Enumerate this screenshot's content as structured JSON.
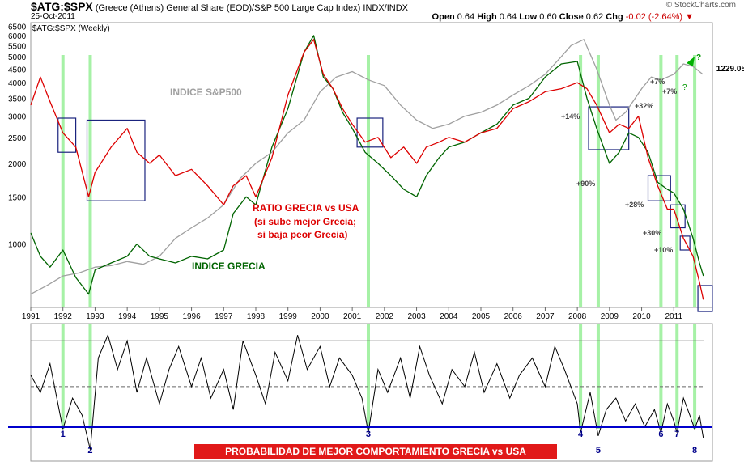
{
  "header": {
    "symbol": "$ATG:$SPX",
    "description": "(Greece (Athens) General Share (EOD)/S&P 500 Large Cap Index) INDX/INDX",
    "date": "25-Oct-2011",
    "brand": "© StockCharts.com",
    "open_label": "Open",
    "open": "0.64",
    "high_label": "High",
    "high": "0.64",
    "low_label": "Low",
    "low": "0.60",
    "close_label": "Close",
    "close": "0.62",
    "chg_label": "Chg",
    "chg": "-0.02 (-2.64%)"
  },
  "colors": {
    "ratio": "#dd0000",
    "greece": "#006400",
    "sp500": "#a0a0a0",
    "highlight": "#90ee90",
    "box": "#1a237e",
    "indicator_line": "#0000cc",
    "caption_bg": "#e11919"
  },
  "chart_data": [
    {
      "type": "line",
      "panel": "upper",
      "legend": "$ATG:$SPX (Weekly)",
      "scale": "log",
      "y_ticks": [
        "6500",
        "6000",
        "5500",
        "5000",
        "4500",
        "4000",
        "3500",
        "3000",
        "2500",
        "2000",
        "1500",
        "1000"
      ],
      "y_tick_values": [
        6500,
        6000,
        5500,
        5000,
        4500,
        4000,
        3500,
        3000,
        2500,
        2000,
        1500,
        1000
      ],
      "ylim": [
        580,
        6700
      ],
      "xlim": [
        1991.0,
        2011.95
      ],
      "x_ticks": [
        "1991",
        "1992",
        "1993",
        "1994",
        "1995",
        "1996",
        "1997",
        "1998",
        "1999",
        "2000",
        "2001",
        "2002",
        "2003",
        "2004",
        "2005",
        "2006",
        "2007",
        "2008",
        "2009",
        "2010",
        "2011"
      ],
      "last_value_label": "1229.05",
      "series": [
        {
          "name": "RATIO GRECIA vs USA",
          "x": [
            1991.0,
            1991.3,
            1991.6,
            1992.0,
            1992.4,
            1992.8,
            1993.0,
            1993.5,
            1994.0,
            1994.3,
            1994.7,
            1995.0,
            1995.5,
            1996.0,
            1996.5,
            1997.0,
            1997.3,
            1997.7,
            1998.0,
            1998.5,
            1999.0,
            1999.5,
            1999.8,
            2000.1,
            2000.4,
            2000.7,
            2001.0,
            2001.4,
            2001.8,
            2002.2,
            2002.6,
            2003.0,
            2003.3,
            2003.7,
            2004.0,
            2004.5,
            2005.0,
            2005.5,
            2006.0,
            2006.5,
            2007.0,
            2007.5,
            2008.0,
            2008.3,
            2008.6,
            2009.0,
            2009.3,
            2009.6,
            2009.9,
            2010.2,
            2010.5,
            2010.8,
            2011.0,
            2011.3,
            2011.6,
            2011.8,
            2011.92
          ],
          "values": [
            3300,
            4200,
            3400,
            2600,
            2300,
            1500,
            1850,
            2300,
            2700,
            2200,
            2000,
            2150,
            1800,
            1900,
            1650,
            1400,
            1650,
            1800,
            1500,
            2100,
            3600,
            5200,
            5800,
            4300,
            3800,
            3200,
            2800,
            2400,
            2500,
            2100,
            2300,
            2000,
            2300,
            2400,
            2500,
            2400,
            2600,
            2700,
            3200,
            3400,
            3700,
            3800,
            4000,
            3800,
            3300,
            2600,
            2800,
            2700,
            3000,
            2100,
            1650,
            1350,
            1350,
            1050,
            900,
            720,
            620
          ]
        },
        {
          "name": "INDICE GRECIA",
          "x": [
            1991.0,
            1991.3,
            1991.6,
            1992.0,
            1992.4,
            1992.8,
            1993.0,
            1993.5,
            1994.0,
            1994.3,
            1994.7,
            1995.0,
            1995.5,
            1996.0,
            1996.5,
            1997.0,
            1997.3,
            1997.7,
            1998.0,
            1998.5,
            1999.0,
            1999.5,
            1999.8,
            2000.1,
            2000.4,
            2000.7,
            2001.0,
            2001.4,
            2001.8,
            2002.2,
            2002.6,
            2003.0,
            2003.3,
            2003.7,
            2004.0,
            2004.5,
            2005.0,
            2005.5,
            2006.0,
            2006.5,
            2007.0,
            2007.5,
            2008.0,
            2008.3,
            2008.6,
            2009.0,
            2009.3,
            2009.6,
            2009.9,
            2010.2,
            2010.5,
            2010.8,
            2011.0,
            2011.3,
            2011.6,
            2011.8,
            2011.92
          ],
          "values": [
            1100,
            900,
            820,
            950,
            750,
            650,
            800,
            850,
            900,
            1000,
            900,
            880,
            850,
            900,
            880,
            950,
            1300,
            1500,
            1400,
            2300,
            3200,
            5200,
            6000,
            4200,
            3800,
            3100,
            2700,
            2200,
            2000,
            1800,
            1600,
            1500,
            1800,
            2100,
            2300,
            2400,
            2600,
            2800,
            3300,
            3500,
            4200,
            4700,
            4800,
            3500,
            2700,
            2000,
            2200,
            2600,
            2500,
            2200,
            1700,
            1600,
            1550,
            1350,
            1050,
            850,
            760
          ]
        },
        {
          "name": "INDICE S&P500",
          "x": [
            1991.0,
            1991.5,
            1992.0,
            1992.5,
            1993.0,
            1993.5,
            1994.0,
            1994.5,
            1995.0,
            1995.5,
            1996.0,
            1996.5,
            1997.0,
            1997.5,
            1998.0,
            1998.5,
            1999.0,
            1999.5,
            2000.0,
            2000.5,
            2001.0,
            2001.5,
            2002.0,
            2002.5,
            2003.0,
            2003.5,
            2004.0,
            2004.5,
            2005.0,
            2005.5,
            2006.0,
            2006.5,
            2007.0,
            2007.5,
            2007.8,
            2008.2,
            2008.6,
            2009.0,
            2009.2,
            2009.5,
            2010.0,
            2010.3,
            2010.6,
            2011.0,
            2011.3,
            2011.6,
            2011.9
          ],
          "values": [
            650,
            700,
            760,
            780,
            820,
            830,
            860,
            840,
            900,
            1050,
            1150,
            1250,
            1400,
            1750,
            2000,
            2200,
            2600,
            2900,
            3700,
            4200,
            4400,
            4100,
            3900,
            3300,
            2900,
            2700,
            2800,
            3000,
            3100,
            3300,
            3600,
            3900,
            4300,
            5000,
            5500,
            5800,
            4500,
            3300,
            2900,
            3100,
            3800,
            4200,
            4100,
            4300,
            4700,
            4600,
            4300
          ]
        }
      ],
      "annotations": [
        {
          "text": "INDICE S&P500",
          "color": "#a0a0a0"
        },
        {
          "text": "RATIO GRECIA vs USA",
          "color": "#dd0000"
        },
        {
          "text": "(si sube mejor Grecia;",
          "color": "#dd0000"
        },
        {
          "text": "si baja peor Grecia)",
          "color": "#dd0000"
        },
        {
          "text": "INDICE GRECIA",
          "color": "#006400"
        },
        {
          "text": "+14%"
        },
        {
          "text": "+32%"
        },
        {
          "text": "+7%"
        },
        {
          "text": "+7%"
        },
        {
          "text": "+90%"
        },
        {
          "text": "+28%"
        },
        {
          "text": "+30%"
        },
        {
          "text": "+10%"
        },
        {
          "text": "?"
        },
        {
          "text": "?"
        }
      ],
      "highlight_x": [
        1992.0,
        1992.85,
        2001.5,
        2008.1,
        2008.65,
        2010.6,
        2011.1,
        2011.65
      ],
      "boxes": [
        {
          "x0": 1991.85,
          "x1": 1992.4,
          "y0": 2200,
          "y1": 2950
        },
        {
          "x0": 1992.75,
          "x1": 1994.55,
          "y0": 1450,
          "y1": 2900
        },
        {
          "x0": 2001.15,
          "x1": 2001.95,
          "y0": 2300,
          "y1": 2950
        },
        {
          "x0": 2008.35,
          "x1": 2009.6,
          "y0": 2250,
          "y1": 3250
        },
        {
          "x0": 2010.2,
          "x1": 2010.9,
          "y0": 1450,
          "y1": 1800
        },
        {
          "x0": 2010.9,
          "x1": 2011.35,
          "y0": 1150,
          "y1": 1400
        },
        {
          "x0": 2011.2,
          "x1": 2011.5,
          "y0": 950,
          "y1": 1070
        },
        {
          "x0": 2011.75,
          "x1": 2012.2,
          "y0": 560,
          "y1": 700
        }
      ]
    },
    {
      "type": "line",
      "panel": "lower",
      "series": [
        {
          "x": [
            1991.0,
            1991.3,
            1991.6,
            1992.0,
            1992.3,
            1992.6,
            1992.85,
            1993.1,
            1993.4,
            1993.7,
            1994.0,
            1994.3,
            1994.6,
            1995.0,
            1995.3,
            1995.6,
            1996.0,
            1996.3,
            1996.6,
            1997.0,
            1997.3,
            1997.6,
            1998.0,
            1998.3,
            1998.6,
            1999.0,
            1999.3,
            1999.6,
            2000.0,
            2000.3,
            2000.6,
            2001.0,
            2001.3,
            2001.5,
            2001.8,
            2002.1,
            2002.5,
            2002.8,
            2003.1,
            2003.4,
            2003.8,
            2004.1,
            2004.5,
            2004.8,
            2005.1,
            2005.5,
            2005.9,
            2006.2,
            2006.6,
            2007.0,
            2007.3,
            2007.6,
            2008.0,
            2008.1,
            2008.4,
            2008.65,
            2008.9,
            2009.2,
            2009.5,
            2009.8,
            2010.1,
            2010.4,
            2010.6,
            2010.8,
            2011.0,
            2011.1,
            2011.3,
            2011.5,
            2011.65,
            2011.8,
            2011.92
          ],
          "values": [
            55,
            40,
            65,
            8,
            35,
            20,
            -10,
            70,
            90,
            60,
            85,
            40,
            70,
            30,
            60,
            80,
            45,
            70,
            35,
            60,
            25,
            85,
            55,
            30,
            75,
            50,
            90,
            60,
            80,
            45,
            70,
            55,
            35,
            5,
            60,
            40,
            70,
            35,
            80,
            55,
            30,
            60,
            45,
            75,
            40,
            65,
            35,
            55,
            70,
            45,
            80,
            60,
            30,
            5,
            40,
            2,
            25,
            35,
            15,
            30,
            10,
            25,
            5,
            30,
            15,
            5,
            35,
            20,
            8,
            20,
            0
          ]
        }
      ],
      "upper_ref": 85,
      "mid_ref": 45,
      "ylim": [
        -20,
        100
      ],
      "markers": [
        "1",
        "2",
        "3",
        "4",
        "5",
        "6",
        "7",
        "8"
      ],
      "markers_x": [
        1992.0,
        1992.85,
        2001.5,
        2008.1,
        2008.65,
        2010.6,
        2011.1,
        2011.65
      ],
      "caption": "PROBABILIDAD DE MEJOR COMPORTAMIENTO GRECIA vs USA"
    }
  ]
}
